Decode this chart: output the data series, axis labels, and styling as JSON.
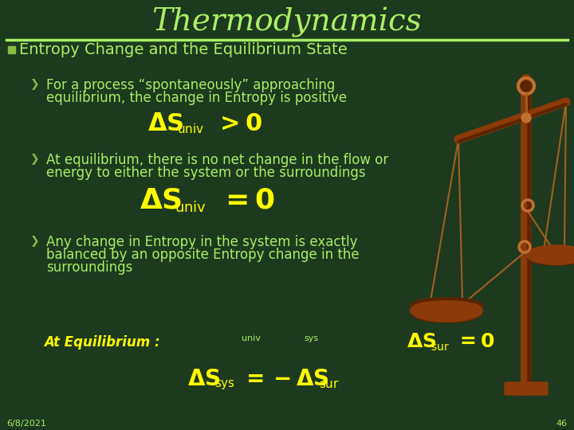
{
  "bg_color": "#1e3a1e",
  "title": "Thermodynamics",
  "title_color": "#aaee66",
  "title_fontsize": 28,
  "separator_color": "#aaee66",
  "heading": "Entropy Change and the Equilibrium State",
  "heading_fontsize": 14,
  "heading_color": "#aaee66",
  "bullet_marker_color": "#88bb44",
  "body_fontsize": 12,
  "body_color": "#aaee66",
  "arrow_color": "#88bb44",
  "math_color": "#ffff00",
  "footer_date": "6/8/2021",
  "footer_page": "46",
  "footer_color": "#aaee66",
  "footer_fontsize": 8,
  "bullet1_line1": "For a process “spontaneously” approaching",
  "bullet1_line2": "equilibrium, the change in Entropy is positive",
  "bullet2_line1": "At equilibrium, there is no net change in the flow or",
  "bullet2_line2": "energy to either the system or the surroundings",
  "bullet3_line1": "Any change in Entropy in the system is exactly",
  "bullet3_line2": "balanced by an opposite Entropy change in the",
  "bullet3_line3": "surroundings",
  "scale_color": "#8B3A0A",
  "scale_dark": "#5c2500",
  "scale_chain": "#a06020",
  "scale_ring": "#c07030"
}
